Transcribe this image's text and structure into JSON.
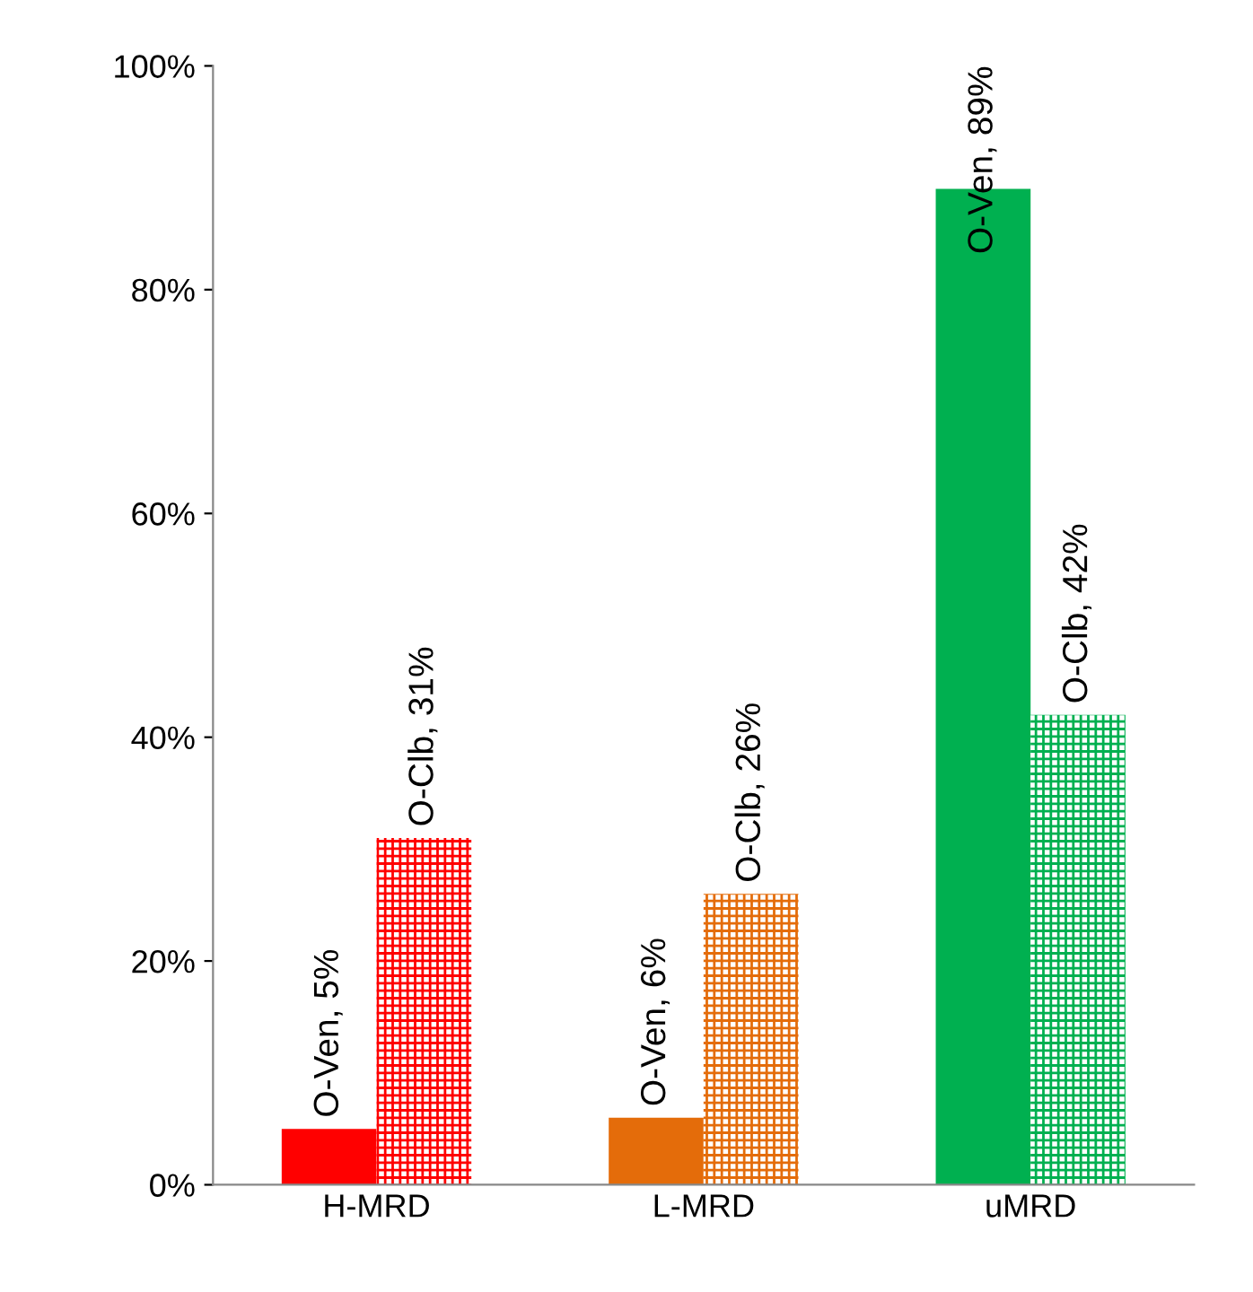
{
  "chart_data": {
    "type": "bar",
    "categories": [
      "H-MRD",
      "L-MRD",
      "uMRD"
    ],
    "series": [
      {
        "colors": [
          "#ff0000",
          "#e46c0a",
          "#00b050"
        ],
        "values": [
          5,
          6,
          89
        ],
        "value_labels": [
          "O-Ven, 5%",
          "O-Ven, 6%",
          "O-Ven, 89%"
        ]
      },
      {
        "colors": [
          "#ff0000",
          "#e46c0a",
          "#00b050"
        ],
        "values": [
          31,
          26,
          42
        ],
        "value_labels": [
          "O-Clb, 31%",
          "O-Clb, 26%",
          "O-Clb, 42%"
        ]
      }
    ],
    "ylim": [
      0,
      100
    ],
    "yticks": [
      {
        "value": 0,
        "label": "0%"
      },
      {
        "value": 20,
        "label": "20%"
      },
      {
        "value": 40,
        "label": "40%"
      },
      {
        "value": 60,
        "label": "60%"
      },
      {
        "value": 80,
        "label": "80%"
      },
      {
        "value": 100,
        "label": "100%"
      }
    ],
    "grid": false,
    "legend": false
  }
}
